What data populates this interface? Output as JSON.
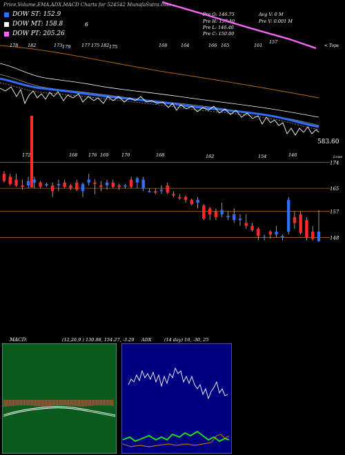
{
  "header": {
    "title": "Price,Volume,EMA,ADX,MACD Charts for 524542  MunafaSutra.com",
    "legend": [
      {
        "label": "DOW ST: 152.9",
        "color": "#2f6fff"
      },
      {
        "label": "DOW MT: 158.8",
        "color": "#ffffff"
      },
      {
        "label": "DOW PT: 205.26",
        "color": "#ff66ff"
      }
    ],
    "legend_extra": "6",
    "quote": {
      "pre_o": "Pre   O: 146.75",
      "pre_h": "Pre   H: 157.40",
      "pre_l": "Pre   L: 146.40",
      "pre_c": "Pre   C: 150.00",
      "avg_v": "Avg V: 0  M",
      "pre_v": "Pre   V: 0.001 M"
    }
  },
  "chart_data": [
    {
      "type": "line",
      "title": "",
      "description": "Price with DOW ST/MT/PT trend lines and EMA bands",
      "top_price_labels": [
        "178",
        "182",
        "173",
        "179",
        "177",
        "175",
        "182",
        "175",
        "168",
        "164",
        "166",
        "165",
        "161",
        "157"
      ],
      "right_label": "583.60",
      "right_tag": "< Tops",
      "series": [
        {
          "name": "DOW PT",
          "color": "#ff66ff",
          "values": [
            205.26
          ]
        },
        {
          "name": "DOW MT",
          "color": "#ffffff",
          "values": [
            158.8
          ]
        },
        {
          "name": "DOW ST",
          "color": "#2f6fff",
          "values": [
            152.9
          ]
        }
      ]
    },
    {
      "type": "bar",
      "title": "",
      "description": "Volume bars",
      "values": [
        0,
        0,
        1,
        0,
        0,
        0,
        0,
        0,
        0,
        0,
        0,
        0,
        0,
        0,
        0,
        0,
        0,
        0,
        0,
        0
      ]
    },
    {
      "type": "bar",
      "title": "",
      "description": "Candlestick price panel",
      "top_labels": [
        "172",
        "168",
        "176",
        "169",
        "170",
        "168",
        "162",
        "154",
        "146"
      ],
      "right_levels": [
        {
          "label": "174",
          "value": 174
        },
        {
          "label": "165",
          "value": 165
        },
        {
          "label": "157",
          "value": 157
        },
        {
          "label": "148",
          "value": 148
        }
      ],
      "right_tag": "Lows",
      "candles": [
        {
          "o": 170,
          "h": 171,
          "l": 167,
          "c": 167.5
        },
        {
          "o": 169,
          "h": 170,
          "l": 166,
          "c": 166.5
        },
        {
          "o": 168,
          "h": 170,
          "l": 165.5,
          "c": 166
        },
        {
          "o": 166,
          "h": 168,
          "l": 164.5,
          "c": 165.5
        },
        {
          "o": 166,
          "h": 169,
          "l": 165,
          "c": 167.5
        },
        {
          "o": 167,
          "h": 169,
          "l": 165,
          "c": 168
        },
        {
          "o": 167,
          "h": 167.5,
          "l": 165,
          "c": 165.6
        },
        {
          "o": 166,
          "h": 167,
          "l": 165.5,
          "c": 166.5
        },
        {
          "o": 166,
          "h": 167,
          "l": 162,
          "c": 164
        },
        {
          "o": 166,
          "h": 168,
          "l": 164,
          "c": 166.5
        },
        {
          "o": 167,
          "h": 168,
          "l": 165,
          "c": 165.5
        },
        {
          "o": 166,
          "h": 166.5,
          "l": 164.5,
          "c": 165
        },
        {
          "o": 167,
          "h": 168,
          "l": 164,
          "c": 164.5
        },
        {
          "o": 164,
          "h": 167,
          "l": 162,
          "c": 166.5
        },
        {
          "o": 167,
          "h": 170,
          "l": 166,
          "c": 168
        },
        {
          "o": 167,
          "h": 168,
          "l": 163,
          "c": 166.5
        },
        {
          "o": 166,
          "h": 167.5,
          "l": 164,
          "c": 165.5
        },
        {
          "o": 166,
          "h": 168,
          "l": 164.5,
          "c": 167
        },
        {
          "o": 167,
          "h": 168,
          "l": 165,
          "c": 165.5
        },
        {
          "o": 166,
          "h": 166.5,
          "l": 164.5,
          "c": 165.5
        },
        {
          "o": 166,
          "h": 166.5,
          "l": 165,
          "c": 166
        },
        {
          "o": 168,
          "h": 169,
          "l": 165,
          "c": 165.5
        },
        {
          "o": 167,
          "h": 169,
          "l": 165,
          "c": 168.5
        },
        {
          "o": 165,
          "h": 169,
          "l": 164,
          "c": 168
        },
        {
          "o": 164,
          "h": 165,
          "l": 163.5,
          "c": 164
        },
        {
          "o": 164,
          "h": 165,
          "l": 163,
          "c": 163.5
        },
        {
          "o": 164,
          "h": 166,
          "l": 163,
          "c": 164.5
        },
        {
          "o": 166,
          "h": 167,
          "l": 163,
          "c": 163.5
        },
        {
          "o": 163,
          "h": 164,
          "l": 162,
          "c": 162.5
        },
        {
          "o": 162,
          "h": 163,
          "l": 161,
          "c": 161.5
        },
        {
          "o": 162,
          "h": 162.5,
          "l": 160,
          "c": 161
        },
        {
          "o": 161,
          "h": 161.5,
          "l": 159,
          "c": 159.5
        },
        {
          "o": 160,
          "h": 162,
          "l": 158,
          "c": 161
        },
        {
          "o": 159,
          "h": 159.5,
          "l": 154,
          "c": 154.5
        },
        {
          "o": 158,
          "h": 158.5,
          "l": 154,
          "c": 156
        },
        {
          "o": 157,
          "h": 158,
          "l": 154,
          "c": 155
        },
        {
          "o": 156,
          "h": 160,
          "l": 155,
          "c": 157.5
        },
        {
          "o": 155,
          "h": 157,
          "l": 154,
          "c": 155.5
        },
        {
          "o": 154,
          "h": 158,
          "l": 153,
          "c": 156
        },
        {
          "o": 154,
          "h": 156,
          "l": 152,
          "c": 154.5
        },
        {
          "o": 153,
          "h": 156,
          "l": 151,
          "c": 152
        },
        {
          "o": 152,
          "h": 153,
          "l": 150,
          "c": 150.5
        },
        {
          "o": 151,
          "h": 151.5,
          "l": 147,
          "c": 148.5
        },
        {
          "o": 148,
          "h": 149,
          "l": 147,
          "c": 148.2
        },
        {
          "o": 150,
          "h": 150.5,
          "l": 147.5,
          "c": 149
        },
        {
          "o": 149,
          "h": 152,
          "l": 148,
          "c": 150
        },
        {
          "o": 148,
          "h": 149,
          "l": 147,
          "c": 148.5
        },
        {
          "o": 150,
          "h": 162,
          "l": 149,
          "c": 161
        },
        {
          "o": 155,
          "h": 157,
          "l": 151,
          "c": 153
        },
        {
          "o": 156,
          "h": 157,
          "l": 149,
          "c": 149.5
        },
        {
          "o": 154,
          "h": 155,
          "l": 147,
          "c": 148
        },
        {
          "o": 150,
          "h": 152,
          "l": 147,
          "c": 147.5
        },
        {
          "o": 146.75,
          "h": 157.4,
          "l": 146.4,
          "c": 150
        }
      ]
    },
    {
      "type": "line",
      "title": "MACD:",
      "values_text": "(12,26,9 ) 130.98,  154.27, -3.29",
      "series": [
        {
          "name": "MACD",
          "color": "#ffffff"
        },
        {
          "name": "Signal",
          "color": "#ffffff"
        }
      ]
    },
    {
      "type": "line",
      "title": "ADX",
      "values_text": "(14  day) 10,  -30,  25",
      "series": [
        {
          "name": "Price",
          "color": "#ffffff"
        },
        {
          "name": "+DI",
          "color": "#22dd22"
        },
        {
          "name": "-DI",
          "color": "#dd8800"
        }
      ]
    }
  ],
  "colors": {
    "up": "#2f6fff",
    "down": "#ff2a2a",
    "level_line": "#b06a1a",
    "macd_bg": "#0b5a1e",
    "adx_bg": "#000080"
  }
}
